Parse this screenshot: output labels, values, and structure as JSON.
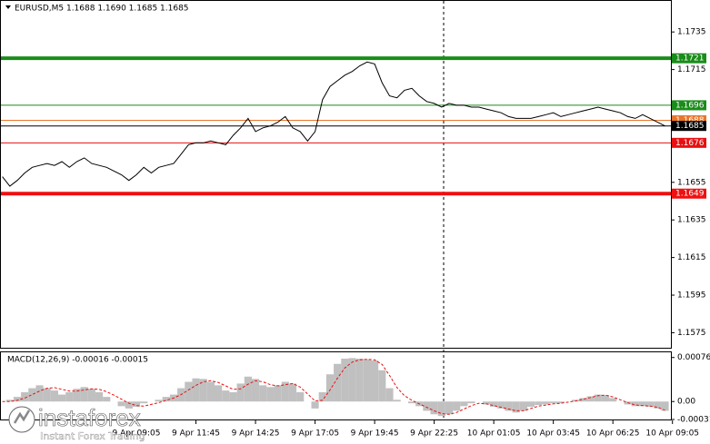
{
  "chart_data": [
    {
      "type": "line",
      "title": "EURUSD,M5  1.1688 1.1690 1.1685 1.1685",
      "categories": [
        null,
        null,
        null,
        null,
        null,
        null,
        null,
        null,
        null,
        null,
        null,
        null,
        null,
        null,
        null,
        null,
        null,
        null,
        "9 Apr 09:05",
        null,
        null,
        null,
        null,
        null,
        null,
        null,
        "9 Apr 11:45",
        null,
        null,
        null,
        null,
        null,
        null,
        null,
        "9 Apr 14:25",
        null,
        null,
        null,
        null,
        null,
        null,
        null,
        "9 Apr 17:05",
        null,
        null,
        null,
        null,
        null,
        null,
        null,
        "9 Apr 19:45",
        null,
        null,
        null,
        null,
        null,
        null,
        null,
        "9 Apr 22:25",
        null,
        null,
        null,
        null,
        null,
        null,
        null,
        "10 Apr 01:05",
        null,
        null,
        null,
        null,
        null,
        null,
        null,
        "10 Apr 03:45",
        null,
        null,
        null,
        null,
        null,
        null,
        null,
        "10 Apr 06:25",
        null,
        null,
        null,
        null,
        null,
        null,
        null,
        "10 Apr 09:05"
      ],
      "values": [
        1.1658,
        1.1653,
        1.1656,
        1.166,
        1.1663,
        1.1664,
        1.1665,
        1.1664,
        1.1666,
        1.1663,
        1.1666,
        1.1668,
        1.1665,
        1.1664,
        1.1663,
        1.1661,
        1.1659,
        1.1656,
        1.1659,
        1.1663,
        1.166,
        1.1663,
        1.1664,
        1.1665,
        1.167,
        1.1675,
        1.1676,
        1.1676,
        1.1677,
        1.1676,
        1.1675,
        1.168,
        1.1684,
        1.1689,
        1.1682,
        1.1684,
        1.1685,
        1.1687,
        1.169,
        1.1684,
        1.1682,
        1.1677,
        1.1682,
        1.1699,
        1.1706,
        1.1709,
        1.1712,
        1.1714,
        1.1717,
        1.1719,
        1.1718,
        1.1708,
        1.1701,
        1.17,
        1.1704,
        1.1705,
        1.1701,
        1.1698,
        1.1697,
        1.1695,
        1.1697,
        1.1696,
        1.1696,
        1.1695,
        1.1695,
        1.1694,
        1.1693,
        1.1692,
        1.169,
        1.1689,
        1.1689,
        1.1689,
        1.169,
        1.1691,
        1.1692,
        1.169,
        1.1691,
        1.1692,
        1.1693,
        1.1694,
        1.1695,
        1.1694,
        1.1693,
        1.1692,
        1.169,
        1.1689,
        1.1691,
        1.1689,
        1.1687,
        1.1685,
        null
      ],
      "color": "#000000",
      "ylim": [
        1.1567,
        1.1752
      ],
      "yticks": [
        1.1735,
        1.1715,
        1.1655,
        1.1635,
        1.1615,
        1.1595,
        1.1575
      ],
      "levels": [
        {
          "value": 1.1721,
          "color": "#1a8c1a",
          "thick": true
        },
        {
          "value": 1.1696,
          "color": "#1a8c1a",
          "thick": false
        },
        {
          "value": 1.1688,
          "color": "#e8762c",
          "thick": false
        },
        {
          "value": 1.1685,
          "color": "#000000",
          "thick": false
        },
        {
          "value": 1.1676,
          "color": "#e81010",
          "thick": false
        },
        {
          "value": 1.1649,
          "color": "#f01010",
          "thick": true
        }
      ]
    },
    {
      "type": "bar",
      "title": "MACD(12,26,9) -0.00016 -0.00015",
      "values": [
        0,
        3e-05,
        8e-05,
        0.00016,
        0.00023,
        0.00028,
        0.00023,
        0.00019,
        0.00012,
        0.00016,
        0.00022,
        0.00025,
        0.00022,
        0.00016,
        8e-05,
        0,
        -8e-05,
        -0.00012,
        -9e-05,
        -3e-05,
        0,
        3e-05,
        8e-05,
        0.00012,
        0.00023,
        0.00034,
        0.0004,
        0.00039,
        0.00034,
        0.00028,
        0.00019,
        0.00016,
        0.00031,
        0.00043,
        0.00039,
        0.00028,
        0.00025,
        0.00028,
        0.00034,
        0.00031,
        0.00016,
        0,
        -0.00012,
        0.00016,
        0.00047,
        0.00065,
        0.00074,
        0.00075,
        0.00074,
        0.00073,
        0.00071,
        0.00054,
        0.00023,
        3e-05,
        0,
        -3e-05,
        -8e-05,
        -0.00016,
        -0.00022,
        -0.00025,
        -0.00022,
        -0.00016,
        -8e-05,
        -3e-05,
        0,
        -5e-05,
        -9e-05,
        -0.00012,
        -0.00016,
        -0.00019,
        -0.00016,
        -9e-05,
        -6e-05,
        -5e-05,
        -3e-05,
        -3e-05,
        0,
        3e-05,
        6e-05,
        9e-05,
        0.00012,
        0.00011,
        6e-05,
        0,
        -5e-05,
        -8e-05,
        -8e-05,
        -9e-05,
        -0.00012,
        -0.00016,
        null
      ],
      "color": "#c0c0c0",
      "signal": {
        "color": "#e81010",
        "values": [
          0,
          0,
          2e-05,
          6e-05,
          0.00012,
          0.00018,
          0.00023,
          0.00024,
          0.00021,
          0.00018,
          0.00018,
          0.0002,
          0.00022,
          0.00021,
          0.00017,
          0.00011,
          4e-05,
          -3e-05,
          -7e-05,
          -8e-05,
          -5e-05,
          -2e-05,
          2e-05,
          6e-05,
          0.00012,
          0.0002,
          0.00028,
          0.00034,
          0.00036,
          0.00033,
          0.00027,
          0.00021,
          0.00022,
          0.0003,
          0.00036,
          0.00034,
          0.00029,
          0.00027,
          0.00029,
          0.00031,
          0.00025,
          0.00013,
          1e-05,
          2e-05,
          0.0002,
          0.0004,
          0.00058,
          0.00068,
          0.00072,
          0.00073,
          0.00072,
          0.00064,
          0.00045,
          0.00024,
          0.0001,
          2e-05,
          -4e-05,
          -0.0001,
          -0.00016,
          -0.00021,
          -0.00022,
          -0.00019,
          -0.00013,
          -7e-05,
          -3e-05,
          -4e-05,
          -7e-05,
          -0.0001,
          -0.00013,
          -0.00016,
          -0.00016,
          -0.00012,
          -8e-05,
          -6e-05,
          -4e-05,
          -3e-05,
          -1e-05,
          1e-05,
          4e-05,
          7e-05,
          0.0001,
          0.00011,
          8e-05,
          3e-05,
          -2e-05,
          -6e-05,
          -7e-05,
          -8e-05,
          -0.0001,
          -0.00015,
          null
        ]
      },
      "ylim": [
        -0.00031,
        0.00085
      ],
      "yticks": [
        0.00076,
        {
          "value": 0,
          "label": "0.00"
        },
        -0.00031
      ]
    }
  ],
  "watermark": {
    "brand": "instaforex",
    "tagline": "Instant Forex Trading"
  }
}
